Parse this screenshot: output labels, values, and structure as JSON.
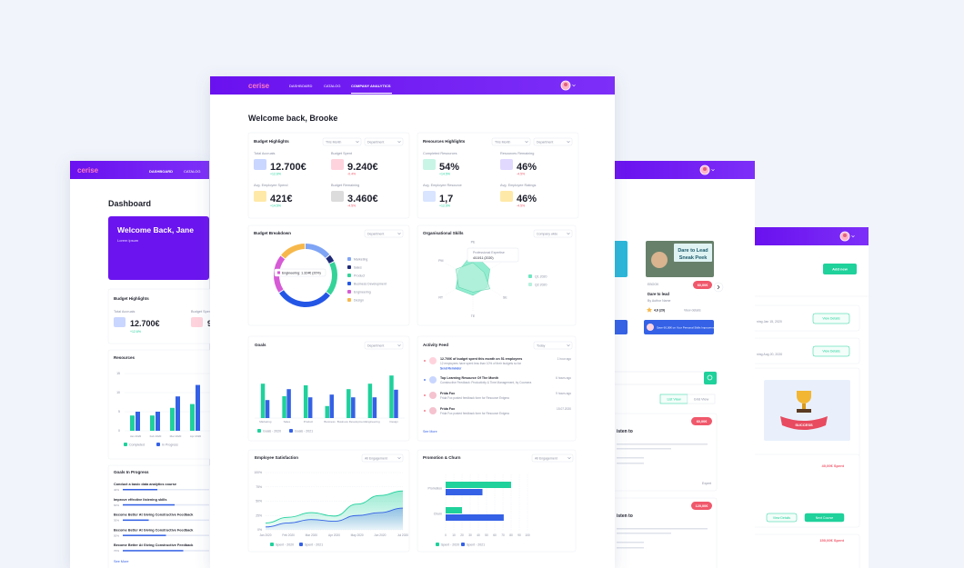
{
  "left_screen": {
    "logo": "cerise",
    "nav": [
      "DASHBOARD",
      "CATALOG"
    ],
    "title": "Dashboard",
    "banner": {
      "title": "Welcome Back, Jane",
      "subtitle": "Lorem ipsum"
    },
    "budget": {
      "title": "Budget Highlights",
      "metrics": [
        {
          "label": "Total Accruals",
          "value": "12.700€",
          "change": "+12.6%"
        },
        {
          "label": "Budget Spent",
          "value": "9.240€"
        }
      ]
    },
    "resources_chart": {
      "title": "Resources",
      "categories": [
        "Jan 2020",
        "Feb 2020",
        "Mar 2020",
        "Apr 2020"
      ],
      "ylim": [
        0,
        15
      ],
      "yticks": [
        0,
        5,
        10,
        15
      ],
      "series": [
        {
          "name": "Completed",
          "color": "#1fd19b",
          "values": [
            4,
            4,
            6,
            7
          ]
        },
        {
          "name": "In Progress",
          "color": "#3461e6",
          "values": [
            5,
            5,
            9,
            12
          ]
        }
      ]
    },
    "goals": {
      "title": "Goals In Progress",
      "items": [
        {
          "title": "Conduct a basic data analytics course",
          "value": 40,
          "value_label": "40%"
        },
        {
          "title": "Improve effective listening skills",
          "value": 60,
          "value_label": "60%"
        },
        {
          "title": "Become Better At Giving Constructive Feedback",
          "value": 30,
          "value_label": "30%"
        },
        {
          "title": "Become Better At Giving Constructive Feedback",
          "value": 50,
          "value_label": "50%"
        },
        {
          "title": "Become Better At Giving Constructive Feedback",
          "value": 70,
          "value_label": "70%"
        }
      ],
      "more": "See More"
    }
  },
  "right_screen": {
    "course": {
      "image_title": "Dare to Lead",
      "image_subtitle": "Sneak Peek",
      "type": "EBOOK",
      "price": "60,00€",
      "title": "Dare to lead",
      "author": "By Author Name",
      "rating": "4,6 (29)",
      "details": "View details",
      "promo": "Save 60,00€ on Your Personal Skills Improvement"
    },
    "views": [
      "List View",
      "Grid View"
    ],
    "list": [
      {
        "title": "isten to",
        "price": "60,00€",
        "level": "Expert"
      },
      {
        "title": "isten to",
        "price": "120,00€"
      }
    ]
  },
  "third_screen": {
    "add": "Add new",
    "sessions": [
      {
        "date": "ning Jan 15, 2020",
        "button": "View Details"
      },
      {
        "date": "ning Aug 20, 2020",
        "button": "View Details"
      }
    ],
    "badge": "SUCCESS",
    "spent": [
      "40,00€ Spent",
      "150,00€ Spent"
    ],
    "buttons": [
      "View Details",
      "Next Course"
    ]
  },
  "main_screen": {
    "logo": "cerise",
    "nav": [
      "DASHBOARD",
      "CATALOG",
      "COMPANY ANALYTICS"
    ],
    "welcome": "Welcome back, Brooke",
    "budget_highlights": {
      "title": "Budget Highlights",
      "filters": [
        "This Month",
        "Department"
      ],
      "metrics": [
        {
          "label": "Total Accruals",
          "value": "12.700€",
          "change": "+12.6%"
        },
        {
          "label": "Budget Spent",
          "value": "9.240€",
          "change": "-0.4%"
        },
        {
          "label": "Avg. Employee Spend",
          "value": "421€",
          "change": "+14.5%"
        },
        {
          "label": "Budget Remaining",
          "value": "3.460€",
          "change": "-4.5%"
        }
      ]
    },
    "resources_highlights": {
      "title": "Resources Highlights",
      "filters": [
        "This Month",
        "Department"
      ],
      "metrics": [
        {
          "label": "Completed Resources",
          "value": "54%",
          "change": "+14.5%"
        },
        {
          "label": "Resources Remaining",
          "value": "46%",
          "change": "-4.5%"
        },
        {
          "label": "Avg. Employee Resource",
          "value": "1,7",
          "change": "+12.5%"
        },
        {
          "label": "Avg. Employee Ratings",
          "value": "46%",
          "change": "-4.5%"
        }
      ]
    },
    "budget_breakdown": {
      "title": "Budget Breakdown",
      "filter": "Department",
      "tooltip": "Engineering: 1.324€ (20%)",
      "categories": [
        "Marketing",
        "Sales",
        "Product",
        "Business Development",
        "Engineering",
        "Design"
      ],
      "values": [
        14,
        4,
        18,
        30,
        20,
        14
      ],
      "colors": [
        "#7fa4f5",
        "#1e2a78",
        "#34d399",
        "#2456e6",
        "#d65ad6",
        "#f7b84b"
      ]
    },
    "org_skills": {
      "title": "Organisational Skills",
      "filter": "Company wide",
      "tooltip": [
        "Professional Expertise",
        "4/10/11 (2020)"
      ],
      "axes": [
        "PE",
        "UX",
        "SE",
        "TE",
        "RT",
        "PM"
      ],
      "rlim": [
        0,
        10
      ],
      "series": [
        {
          "name": "Q1 2020",
          "color": "#6ee7c0",
          "values": [
            8,
            6,
            5,
            5,
            6,
            5
          ]
        },
        {
          "name": "Q2 2020",
          "color": "#b7f0dc",
          "values": [
            5,
            4,
            6,
            4,
            5,
            6
          ]
        }
      ]
    },
    "goals": {
      "title": "Goals",
      "filter": "Department",
      "categories": [
        "Marketing",
        "Sales",
        "Product",
        "Business",
        "Business Development",
        "Engineering",
        "Design"
      ],
      "ylim": [
        0,
        100
      ],
      "series": [
        {
          "name": "Goals - 2020",
          "color": "#1fd19b",
          "values": [
            63,
            40,
            60,
            22,
            53,
            63,
            78
          ]
        },
        {
          "name": "Goals - 2021",
          "color": "#3461e6",
          "values": [
            33,
            53,
            38,
            43,
            38,
            38,
            52
          ]
        }
      ]
    },
    "activity": {
      "title": "Activity Feed",
      "filter": "Today",
      "items": [
        {
          "title": "12.700€ of budget spent this month on 51 employees",
          "text": "12 employees have spent less than 10% of their budgets so far",
          "action": "Send Reminder",
          "time": "1 hour ago"
        },
        {
          "title": "Top Learning Resource Of The Month",
          "text": "Constructive Feedback: Productivity & Time Management, by Coursera",
          "time": "6 hours ago"
        },
        {
          "title": "Frida Fox",
          "text": "Frida Fox posted feedback form for Resource Enigma",
          "time": "9 hours ago"
        },
        {
          "title": "Frida Fox",
          "text": "Frida Fox posted feedback form for Resource Enigma",
          "time": "15.07.2020"
        }
      ],
      "more": "See More"
    },
    "satisfaction": {
      "title": "Employee Satisfaction",
      "filter": "All Engagement",
      "categories": [
        "Jan 2020",
        "Feb 2020",
        "Mar 2020",
        "Apr 2020",
        "May 2020",
        "Jun 2020",
        "Jul 2020"
      ],
      "ylim": [
        0,
        100
      ],
      "yticks": [
        {
          "value": 0,
          "label": "0%"
        },
        {
          "value": 25,
          "label": "25%"
        },
        {
          "value": 50,
          "label": "50%"
        },
        {
          "value": 75,
          "label": "75%"
        },
        {
          "value": 100,
          "label": "100%"
        }
      ],
      "series": [
        {
          "name": "Spent - 2020",
          "color": "#1fd19b",
          "values": [
            12,
            22,
            30,
            24,
            45,
            60,
            68
          ]
        },
        {
          "name": "Spent - 2021",
          "color": "#3461e6",
          "values": [
            5,
            12,
            18,
            15,
            25,
            30,
            38
          ]
        }
      ]
    },
    "promotion": {
      "title": "Promotion & Churn",
      "filter": "All Engagement",
      "categories": [
        "Promotion",
        "Churn"
      ],
      "xlim": [
        0,
        100
      ],
      "xticks": [
        0,
        10,
        20,
        30,
        40,
        50,
        60,
        70,
        80,
        90,
        100
      ],
      "series": [
        {
          "name": "Spent - 2020",
          "color": "#1fd19b",
          "values": [
            80,
            20
          ]
        },
        {
          "name": "Spent - 2021",
          "color": "#3461e6",
          "values": [
            45,
            71
          ]
        }
      ]
    }
  }
}
